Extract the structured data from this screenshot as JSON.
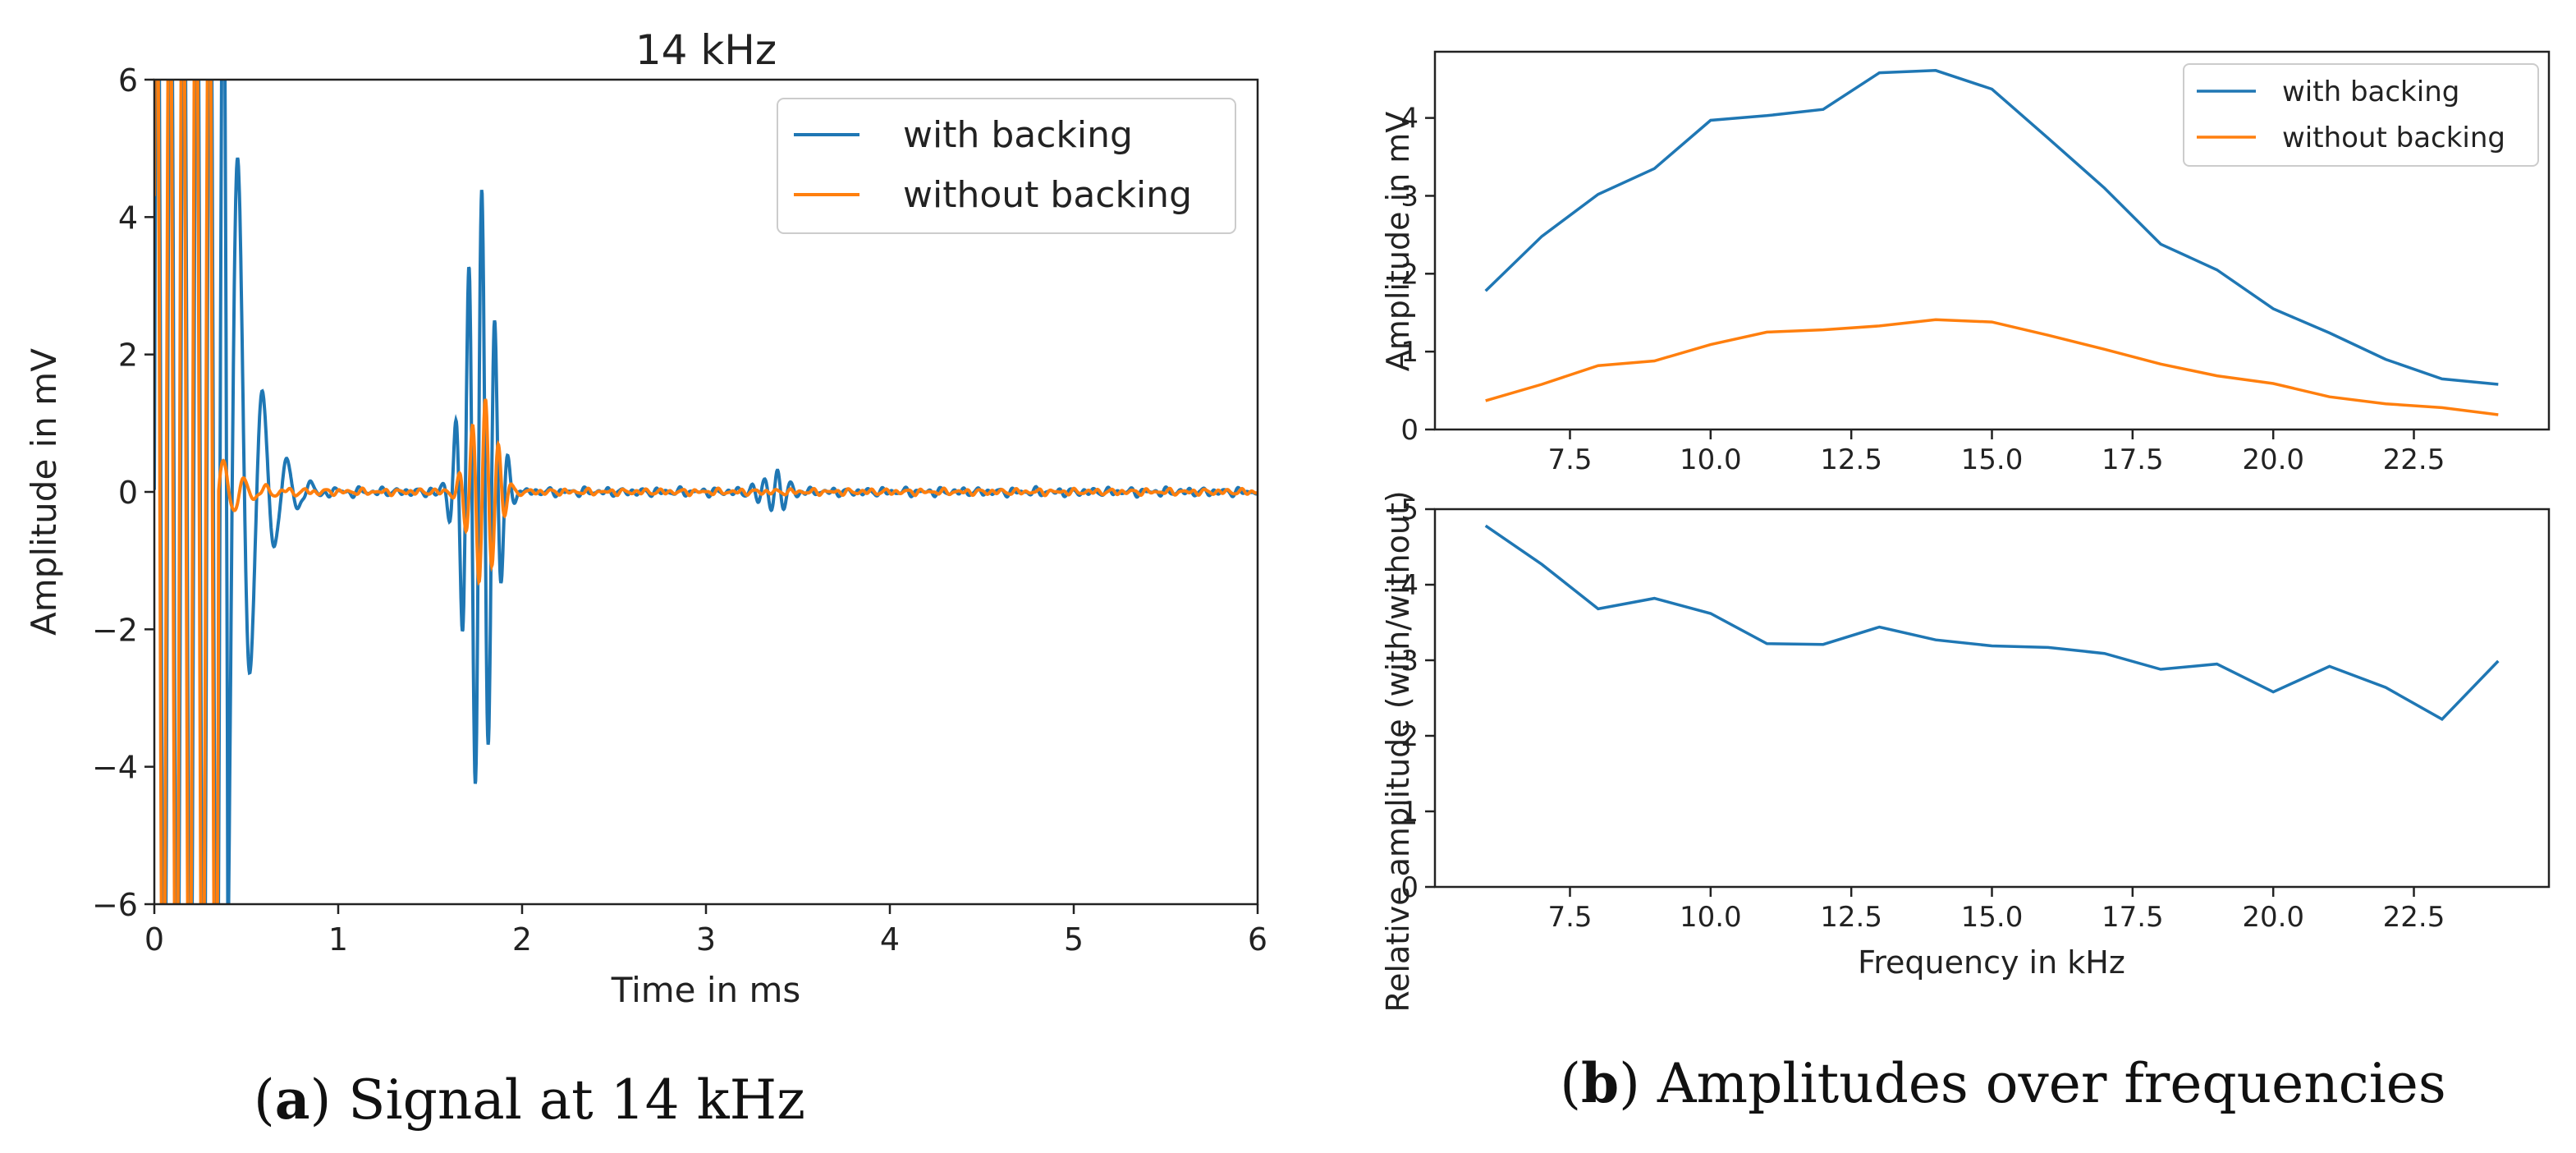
{
  "colors": {
    "with": "#1f77b4",
    "without": "#ff7f0e",
    "axis": "#222222"
  },
  "chart_data": [
    {
      "type": "line",
      "title": "14 kHz",
      "xlabel": "Time in ms",
      "ylabel": "Amplitude in mV",
      "xlim": [
        0,
        6
      ],
      "ylim": [
        -6,
        6
      ],
      "xticks": [
        0,
        1,
        2,
        3,
        4,
        5,
        6
      ],
      "yticks": [
        -6,
        -4,
        -2,
        0,
        2,
        4,
        6
      ],
      "xtick_labels": [
        "0",
        "1",
        "2",
        "3",
        "4",
        "5",
        "6"
      ],
      "ytick_labels": [
        "−6",
        "−4",
        "−2",
        "0",
        "2",
        "4",
        "6"
      ],
      "legend": [
        "with backing",
        "without backing"
      ],
      "legend_position": "top-right",
      "series_description": [
        {
          "name": "with backing",
          "note": "direct crosstalk saturates axis before 0.4 ms, decaying ringing to ~1 ms, echo burst at ~1.6–1.95 ms peaking ~4.6 / −4.3 mV, small burst ~3.3–3.5 ms"
        },
        {
          "name": "without backing",
          "note": "direct crosstalk saturates axis before 0.35 ms, echo burst at ~1.7–1.9 ms peaking ~±1.4 mV"
        }
      ]
    },
    {
      "type": "line",
      "title": "",
      "xlabel": "",
      "ylabel": "Amplitude in mV",
      "x": [
        6,
        7,
        8,
        9,
        10,
        11,
        12,
        13,
        14,
        15,
        16,
        17,
        18,
        19,
        20,
        21,
        22,
        23,
        24
      ],
      "series": [
        {
          "name": "with backing",
          "values": [
            1.78,
            2.48,
            3.02,
            3.35,
            3.97,
            4.03,
            4.11,
            4.58,
            4.61,
            4.37,
            3.74,
            3.1,
            2.38,
            2.05,
            1.55,
            1.24,
            0.9,
            0.65,
            0.58
          ]
        },
        {
          "name": "without backing",
          "values": [
            0.37,
            0.58,
            0.82,
            0.88,
            1.09,
            1.25,
            1.28,
            1.33,
            1.41,
            1.38,
            1.21,
            1.03,
            0.84,
            0.69,
            0.59,
            0.42,
            0.33,
            0.28,
            0.19
          ]
        }
      ],
      "xlim": [
        5.1,
        24.9
      ],
      "ylim": [
        0,
        4.85
      ],
      "xticks": [
        7.5,
        10,
        12.5,
        15,
        17.5,
        20,
        22.5
      ],
      "yticks": [
        0,
        1,
        2,
        3,
        4
      ],
      "xtick_labels": [
        "7.5",
        "10.0",
        "12.5",
        "15.0",
        "17.5",
        "20.0",
        "22.5"
      ],
      "ytick_labels": [
        "0",
        "1",
        "2",
        "3",
        "4"
      ],
      "legend": [
        "with backing",
        "without backing"
      ],
      "legend_position": "top-right"
    },
    {
      "type": "line",
      "title": "",
      "xlabel": "Frequency in kHz",
      "ylabel": "Relative amplitude (with/without)",
      "x": [
        6,
        7,
        8,
        9,
        10,
        11,
        12,
        13,
        14,
        15,
        16,
        17,
        18,
        19,
        20,
        21,
        22,
        23,
        24
      ],
      "series": [
        {
          "name": "relative",
          "values": [
            4.78,
            4.27,
            3.68,
            3.82,
            3.62,
            3.22,
            3.21,
            3.44,
            3.27,
            3.19,
            3.17,
            3.09,
            2.88,
            2.95,
            2.58,
            2.92,
            2.64,
            2.22,
            2.99
          ]
        }
      ],
      "xlim": [
        5.1,
        24.9
      ],
      "ylim": [
        0,
        5
      ],
      "xticks": [
        7.5,
        10,
        12.5,
        15,
        17.5,
        20,
        22.5
      ],
      "yticks": [
        0,
        1,
        2,
        3,
        4,
        5
      ],
      "xtick_labels": [
        "7.5",
        "10.0",
        "12.5",
        "15.0",
        "17.5",
        "20.0",
        "22.5"
      ],
      "ytick_labels": [
        "0",
        "1",
        "2",
        "3",
        "4",
        "5"
      ]
    }
  ],
  "captions": {
    "a": {
      "letter": "a",
      "text": " Signal at 14 kHz"
    },
    "b": {
      "letter": "b",
      "text": " Amplitudes over frequencies"
    }
  }
}
